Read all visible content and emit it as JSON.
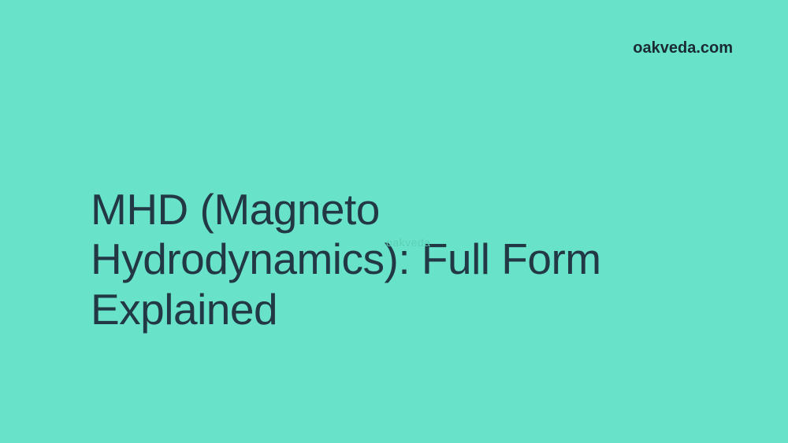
{
  "background_color": "#68e3c9",
  "brand": {
    "text": "oakveda.com",
    "color": "#1a2a33",
    "fontsize": 20
  },
  "title": {
    "text": "MHD (Magneto Hydrodynamics): Full Form Explained",
    "color": "#233845",
    "fontsize": 55
  },
  "watermark": {
    "text": "oakveda",
    "color": "#5ccfb6",
    "fontsize": 14
  }
}
